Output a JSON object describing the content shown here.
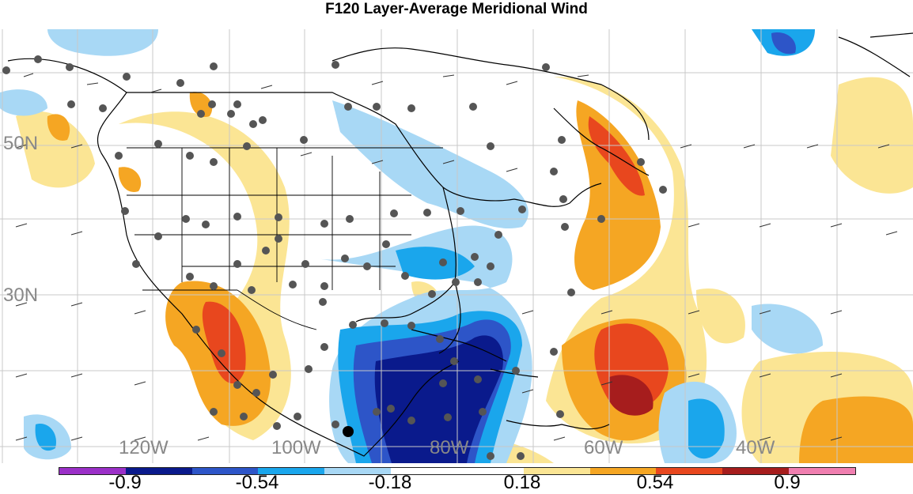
{
  "title": "F120 Layer-Average Meridional Wind",
  "lat_labels": [
    "50N",
    "30N"
  ],
  "lon_labels": [
    "120W",
    "100W",
    "80W",
    "60W",
    "40W"
  ],
  "colorbar": {
    "colors": [
      "#9b30c8",
      "#0a1a8c",
      "#2d55c8",
      "#1aa6ec",
      "#a8d8f5",
      "#ffffff",
      "#ffffff",
      "#fbe594",
      "#f5a623",
      "#e8471e",
      "#a61d1d",
      "#f07fb0"
    ],
    "tick_labels": [
      "-0.9",
      "-0.54",
      "-0.18",
      "0.18",
      "0.54",
      "0.9"
    ]
  }
}
